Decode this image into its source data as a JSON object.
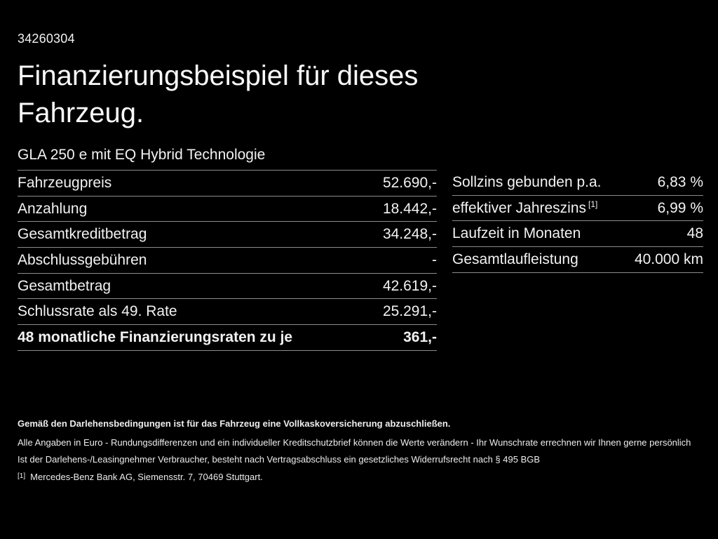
{
  "page": {
    "background_color": "#000000",
    "text_color": "#f2f2f2",
    "divider_color": "#8c8c8c"
  },
  "header": {
    "doc_number": "34260304",
    "title": "Finanzierungsbeispiel für dieses Fahrzeug.",
    "vehicle": "GLA 250 e mit EQ Hybrid Technologie"
  },
  "left_table": {
    "rows": [
      {
        "label": "Fahrzeugpreis",
        "value": "52.690,-"
      },
      {
        "label": "Anzahlung",
        "value": "18.442,-"
      },
      {
        "label": "Gesamtkreditbetrag",
        "value": "34.248,-"
      },
      {
        "label": "Abschlussgebühren",
        "value": "-"
      },
      {
        "label": "Gesamtbetrag",
        "value": "42.619,-"
      },
      {
        "label": "Schlussrate als 49. Rate",
        "value": "25.291,-"
      },
      {
        "label": "48 monatliche Finanzierungsraten zu je",
        "value": "361,-"
      }
    ]
  },
  "right_table": {
    "rows": [
      {
        "label": "Sollzins gebunden p.a.",
        "value": "6,83 %"
      },
      {
        "label": "effektiver Jahreszins",
        "sup": "[1]",
        "value": "6,99 %"
      },
      {
        "label": "Laufzeit in Monaten",
        "value": "48"
      },
      {
        "label": "Gesamtlaufleistung",
        "value": "40.000 km"
      }
    ]
  },
  "footer": {
    "line1": "Gemäß den Darlehensbedingungen ist für das Fahrzeug eine Vollkaskoversicherung abzuschließen.",
    "line2": "Alle Angaben in Euro - Rundungsdifferenzen und ein individueller Kreditschutzbrief können die Werte verändern - Ihr Wunschrate errechnen wir Ihnen gerne persönlich",
    "line3": "Ist der Darlehens-/Leasingnehmer Verbraucher, besteht nach Vertragsabschluss ein gesetzliches Widerrufsrecht nach § 495 BGB",
    "footnote_marker": "[1]",
    "footnote_text": "Mercedes-Benz Bank AG, Siemensstr. 7, 70469 Stuttgart."
  }
}
